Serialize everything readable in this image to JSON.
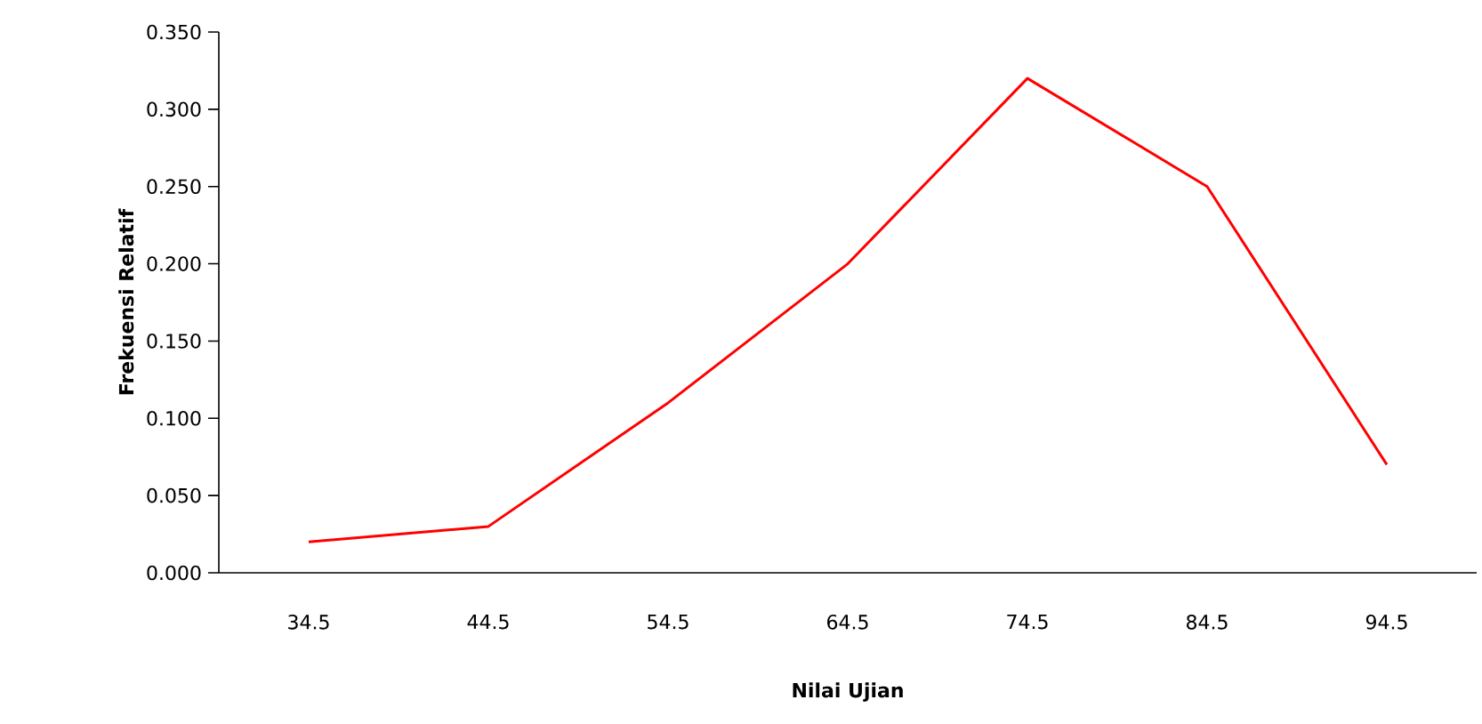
{
  "chart_data": {
    "type": "line",
    "xlabel": "Nilai Ujian",
    "ylabel": "Frekuensi Relatif",
    "categories": [
      "34.5",
      "44.5",
      "54.5",
      "64.5",
      "74.5",
      "84.5",
      "94.5"
    ],
    "series": [
      {
        "color": "#ff0000",
        "values": [
          0.02,
          0.03,
          0.11,
          0.2,
          0.32,
          0.25,
          0.07
        ]
      }
    ],
    "ylim": [
      0,
      0.35
    ],
    "yticks": [
      {
        "value": 0,
        "label": "0.000"
      },
      {
        "value": 0.05,
        "label": "0.050"
      },
      {
        "value": 0.1,
        "label": "0.100"
      },
      {
        "value": 0.15,
        "label": "0.150"
      },
      {
        "value": 0.2,
        "label": "0.200"
      },
      {
        "value": 0.25,
        "label": "0.250"
      },
      {
        "value": 0.3,
        "label": "0.300"
      },
      {
        "value": 0.35,
        "label": "0.350"
      }
    ],
    "marker": "none"
  }
}
